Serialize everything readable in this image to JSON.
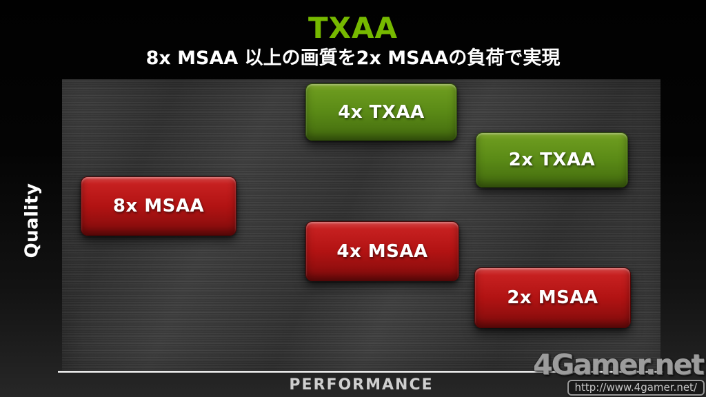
{
  "slide": {
    "title": "TXAA",
    "subtitle": "8x MSAA 以上の画質を2x MSAAの負荷で実現",
    "title_color": "#76b900"
  },
  "chart": {
    "y_axis_label": "Quality",
    "x_axis_label": "PERFORMANCE",
    "axis_line_color": "#e8e8e8",
    "plot_background_color": "#383838"
  },
  "boxes": [
    {
      "label": "4x TXAA",
      "color": "#5a8a16",
      "category": "TXAA"
    },
    {
      "label": "2x TXAA",
      "color": "#5a8a16",
      "category": "TXAA"
    },
    {
      "label": "8x MSAA",
      "color": "#b21313",
      "category": "MSAA"
    },
    {
      "label": "4x MSAA",
      "color": "#b21313",
      "category": "MSAA"
    },
    {
      "label": "2x MSAA",
      "color": "#b21313",
      "category": "MSAA"
    }
  ],
  "watermark": {
    "logo": "4Gamer.net",
    "url": "http://www.4gamer.net/"
  },
  "chart_data": {
    "type": "scatter",
    "title": "TXAA",
    "subtitle": "8x MSAA 以上の画質を2x MSAAの負荷で実現",
    "xlabel": "PERFORMANCE",
    "ylabel": "Quality",
    "xlim": [
      0,
      100
    ],
    "ylim": [
      0,
      100
    ],
    "grid": false,
    "legend_position": "none",
    "series": [
      {
        "name": "TXAA",
        "color": "#5a8a16",
        "points": [
          {
            "label": "4x TXAA",
            "x": 53,
            "y": 89
          },
          {
            "label": "2x TXAA",
            "x": 82,
            "y": 72
          }
        ]
      },
      {
        "name": "MSAA",
        "color": "#b21313",
        "points": [
          {
            "label": "8x MSAA",
            "x": 16,
            "y": 57
          },
          {
            "label": "4x MSAA",
            "x": 53,
            "y": 41
          },
          {
            "label": "2x MSAA",
            "x": 82,
            "y": 26
          }
        ]
      }
    ]
  }
}
